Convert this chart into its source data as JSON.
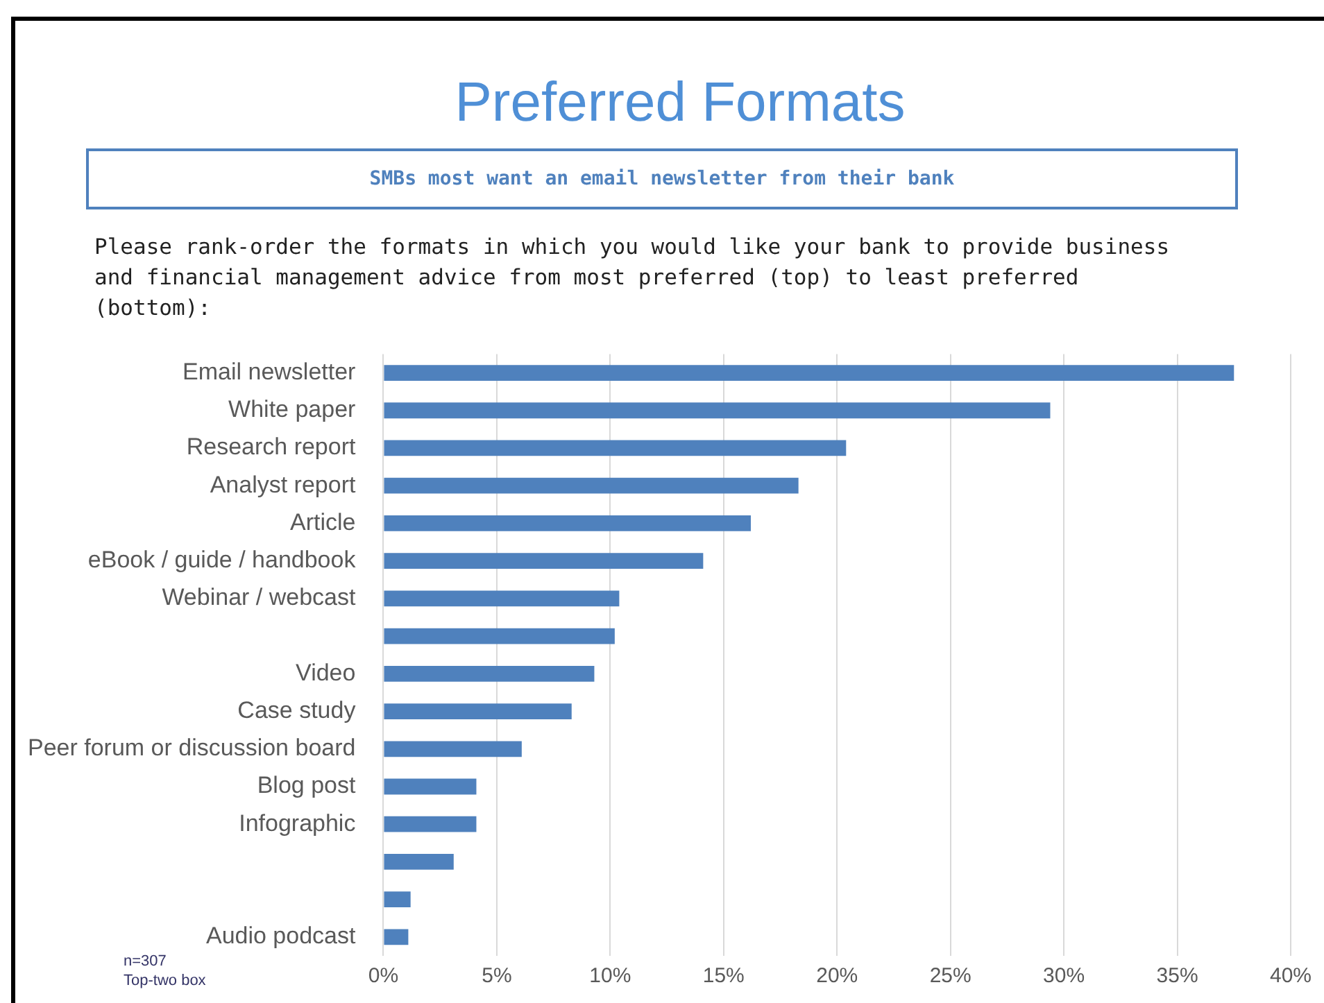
{
  "chart_data": {
    "type": "bar",
    "orientation": "horizontal",
    "title": "Preferred Formats",
    "subtitle": "SMBs most want an email newsletter from their bank",
    "annotations": [
      "Please rank-order the formats in which you would like your bank to provide business and financial management advice from most preferred (top) to least preferred (bottom):",
      "n=307",
      "Top-two box"
    ],
    "categories": [
      "Email newsletter",
      "White paper",
      "Research report",
      "Analyst report",
      "Article",
      "eBook / guide / handbook",
      "Webinar / webcast",
      null,
      "Video",
      "Case study",
      "Peer forum or discussion board",
      "Blog post",
      "Infographic",
      null,
      null,
      "Audio podcast"
    ],
    "values": [
      37.5,
      29.4,
      20.4,
      18.3,
      16.2,
      14.1,
      10.4,
      10.2,
      9.3,
      8.3,
      6.1,
      4.1,
      4.1,
      3.1,
      1.2,
      1.1
    ],
    "color": "#4f81bd",
    "xlim": [
      0,
      40
    ],
    "xticks": [
      {
        "value": 0,
        "label": "0%"
      },
      {
        "value": 5,
        "label": "5%"
      },
      {
        "value": 10,
        "label": "10%"
      },
      {
        "value": 15,
        "label": "15%"
      },
      {
        "value": 20,
        "label": "20%"
      },
      {
        "value": 25,
        "label": "25%"
      },
      {
        "value": 30,
        "label": "30%"
      },
      {
        "value": 35,
        "label": "35%"
      },
      {
        "value": 40,
        "label": "40%"
      }
    ],
    "grid": "x"
  }
}
